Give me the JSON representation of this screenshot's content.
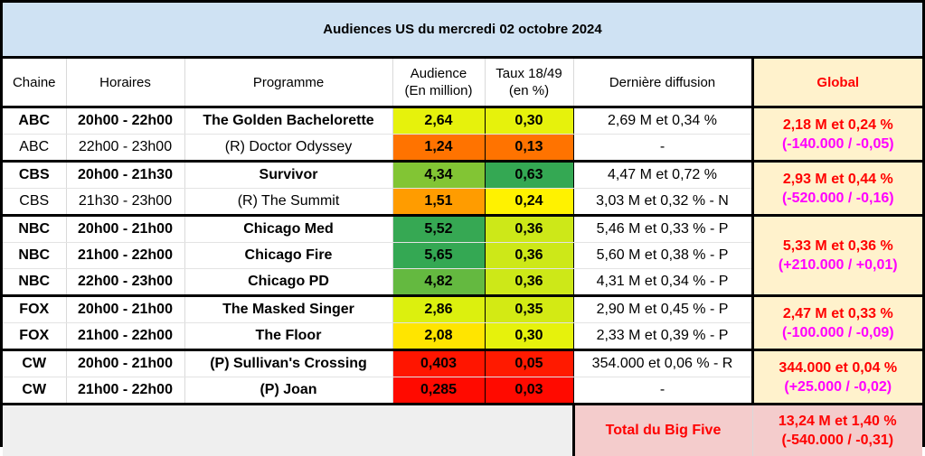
{
  "title": "Audiences US du mercredi 02 octobre 2024",
  "headers": {
    "chaine": "Chaine",
    "horaires": "Horaires",
    "programme": "Programme",
    "audience_l1": "Audience",
    "audience_l2": "(En million)",
    "taux_l1": "Taux 18/49",
    "taux_l2": "(en %)",
    "derniere": "Dernière diffusion",
    "global": "Global"
  },
  "rows": [
    {
      "chaine": "ABC",
      "horaires": "20h00 - 22h00",
      "programme": "The Golden Bachelorette",
      "audience": "2,64",
      "taux": "0,30",
      "derniere": "2,69 M et 0,34 %",
      "bold": true,
      "audience_color": "#e6f20c",
      "taux_color": "#e6f20c"
    },
    {
      "chaine": "ABC",
      "horaires": "22h00 - 23h00",
      "programme": "(R) Doctor Odyssey",
      "audience": "1,24",
      "taux": "0,13",
      "derniere": "-",
      "bold": false,
      "audience_color": "#ff7300",
      "taux_color": "#ff7300"
    },
    {
      "chaine": "CBS",
      "horaires": "20h00 - 21h30",
      "programme": "Survivor",
      "audience": "4,34",
      "taux": "0,63",
      "derniere": "4,47 M et 0,72 %",
      "bold": true,
      "audience_color": "#82c534",
      "taux_color": "#34a853"
    },
    {
      "chaine": "CBS",
      "horaires": "21h30 - 23h00",
      "programme": "(R) The Summit",
      "audience": "1,51",
      "taux": "0,24",
      "derniere": "3,03 M et 0,32 % - N",
      "bold": false,
      "audience_color": "#ff9c00",
      "taux_color": "#fff200"
    },
    {
      "chaine": "NBC",
      "horaires": "20h00 - 21h00",
      "programme": "Chicago Med",
      "audience": "5,52",
      "taux": "0,36",
      "derniere": "5,46 M et 0,33 % - P",
      "bold": true,
      "audience_color": "#36a853",
      "taux_color": "#cde818"
    },
    {
      "chaine": "NBC",
      "horaires": "21h00 - 22h00",
      "programme": "Chicago Fire",
      "audience": "5,65",
      "taux": "0,36",
      "derniere": "5,60 M et 0,38 % - P",
      "bold": true,
      "audience_color": "#34a853",
      "taux_color": "#cde818"
    },
    {
      "chaine": "NBC",
      "horaires": "22h00 - 23h00",
      "programme": "Chicago PD",
      "audience": "4,82",
      "taux": "0,36",
      "derniere": "4,31 M et 0,34 % - P",
      "bold": true,
      "audience_color": "#64b940",
      "taux_color": "#cde818"
    },
    {
      "chaine": "FOX",
      "horaires": "20h00 - 21h00",
      "programme": "The Masked Singer",
      "audience": "2,86",
      "taux": "0,35",
      "derniere": "2,90 M et 0,45 % - P",
      "bold": true,
      "audience_color": "#dcf00e",
      "taux_color": "#d3ea14"
    },
    {
      "chaine": "FOX",
      "horaires": "21h00 - 22h00",
      "programme": "The Floor",
      "audience": "2,08",
      "taux": "0,30",
      "derniere": "2,33 M et 0,39 % - P",
      "bold": true,
      "audience_color": "#ffe500",
      "taux_color": "#e6f20c"
    },
    {
      "chaine": "CW",
      "horaires": "20h00 - 21h00",
      "programme": "(P) Sullivan's Crossing",
      "audience": "0,403",
      "taux": "0,05",
      "derniere": "354.000 et 0,06 % - R",
      "bold": true,
      "audience_color": "#ff1500",
      "taux_color": "#ff1a00"
    },
    {
      "chaine": "CW",
      "horaires": "21h00 - 22h00",
      "programme": "(P) Joan",
      "audience": "0,285",
      "taux": "0,03",
      "derniere": "-",
      "bold": true,
      "audience_color": "#ff0a00",
      "taux_color": "#ff0a00"
    }
  ],
  "globals": [
    {
      "network": "ABC",
      "main": "2,18 M et 0,24 %",
      "delta": "(-140.000 / -0,05)"
    },
    {
      "network": "CBS",
      "main": "2,93 M et 0,44 %",
      "delta": "(-520.000 / -0,16)"
    },
    {
      "network": "NBC",
      "main": "5,33 M et 0,36 %",
      "delta": "(+210.000 / +0,01)"
    },
    {
      "network": "FOX",
      "main": "2,47 M et 0,33 %",
      "delta": "(-100.000 / -0,09)"
    },
    {
      "network": "CW",
      "main": "344.000 et 0,04 %",
      "delta": "(+25.000 / -0,02)"
    }
  ],
  "footer": {
    "label": "Total du Big Five",
    "main": "13,24 M et 1,40 %",
    "delta": "(-540.000 / -0,31)"
  },
  "colors": {
    "title_bg": "#cfe2f3",
    "global_bg": "#fff2cc",
    "total_bg": "#f4cccc",
    "red_text": "#ff0000",
    "magenta_text": "#ff00ff"
  }
}
